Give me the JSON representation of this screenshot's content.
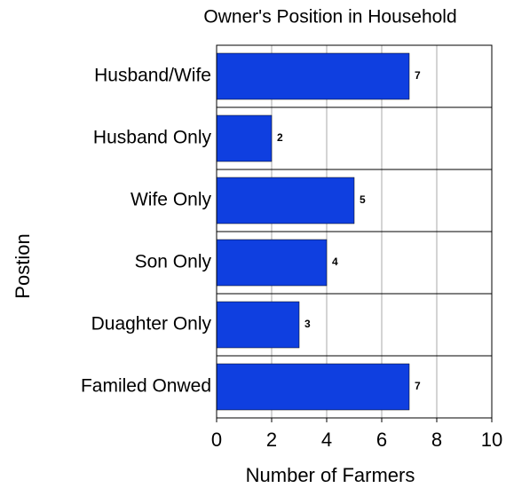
{
  "chart_data": {
    "type": "barh",
    "title": "Owner's Position in Household",
    "xlabel": "Number of Farmers",
    "ylabel": "Postion",
    "categories": [
      "Husband/Wife",
      "Husband Only",
      "Wife Only",
      "Son Only",
      "Duaghter Only",
      "Familed Onwed"
    ],
    "values": [
      7,
      2,
      5,
      4,
      3,
      7
    ],
    "color": "#0f3fe0",
    "xlim": [
      0,
      10
    ],
    "xticks": [
      0,
      2,
      4,
      6,
      8,
      10
    ],
    "grid": true
  }
}
